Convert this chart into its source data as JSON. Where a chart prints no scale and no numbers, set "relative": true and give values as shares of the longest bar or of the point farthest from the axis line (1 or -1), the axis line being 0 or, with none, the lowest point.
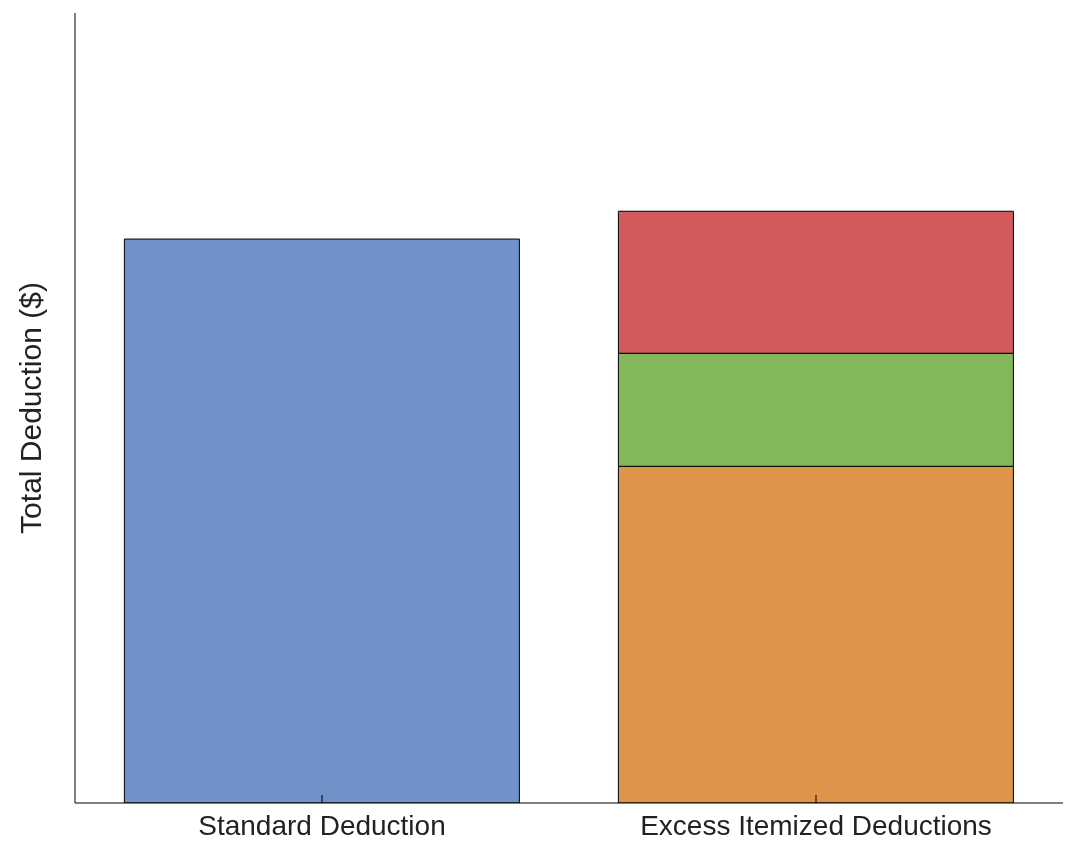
{
  "chart_data": {
    "type": "bar",
    "relative": true,
    "stacked": true,
    "ylabel": "Total Deduction ($)",
    "categories": [
      "Standard Deduction",
      "Excess Itemized Deductions"
    ],
    "series": [
      {
        "color": "#7092c8",
        "values": [
          0.953,
          null
        ]
      },
      {
        "color": "#df944c",
        "values": [
          null,
          0.569
        ]
      },
      {
        "color": "#82b85a",
        "values": [
          null,
          0.191
        ]
      },
      {
        "color": "#d25a5c",
        "values": [
          null,
          0.24
        ]
      }
    ],
    "grid": false,
    "legend": false
  }
}
